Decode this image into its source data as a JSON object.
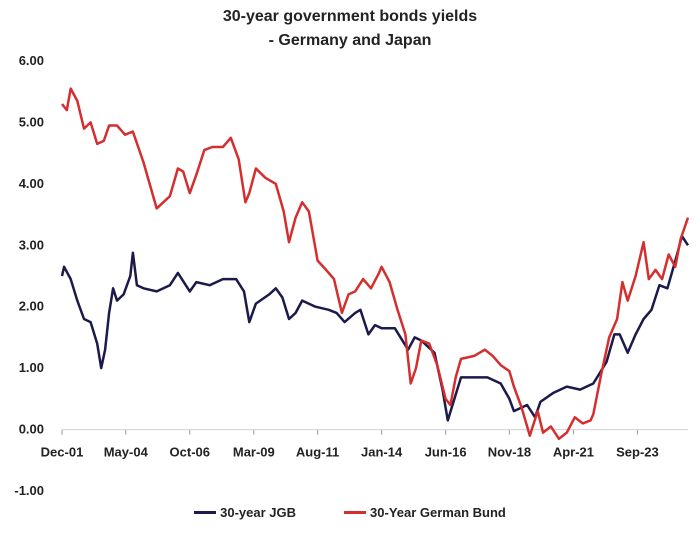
{
  "chart_data": {
    "type": "line",
    "title_line1": "30-year government bonds yields",
    "title_line2": "- Germany and Japan",
    "xlabel": "",
    "ylabel": "",
    "ylim": [
      -1.0,
      6.0
    ],
    "y_ticks": [
      "6.00",
      "5.00",
      "4.00",
      "3.00",
      "2.00",
      "1.00",
      "0.00",
      "-1.00"
    ],
    "x_range": [
      2001.92,
      2025.58
    ],
    "x_ticks": [
      {
        "label": "Dec-01",
        "x": 2001.92
      },
      {
        "label": "May-04",
        "x": 2004.33
      },
      {
        "label": "Oct-06",
        "x": 2006.75
      },
      {
        "label": "Mar-09",
        "x": 2009.17
      },
      {
        "label": "Aug-11",
        "x": 2011.58
      },
      {
        "label": "Jan-14",
        "x": 2014.0
      },
      {
        "label": "Jun-16",
        "x": 2016.42
      },
      {
        "label": "Nov-18",
        "x": 2018.83
      },
      {
        "label": "Apr-21",
        "x": 2021.25
      },
      {
        "label": "Sep-23",
        "x": 2023.67
      }
    ],
    "grid": false,
    "legend_position": "bottom",
    "series": [
      {
        "name": "30-year JGB",
        "color": "#1c1a4a",
        "points": [
          [
            2001.92,
            2.5
          ],
          [
            2002.0,
            2.65
          ],
          [
            2002.25,
            2.45
          ],
          [
            2002.5,
            2.1
          ],
          [
            2002.75,
            1.8
          ],
          [
            2003.0,
            1.75
          ],
          [
            2003.25,
            1.4
          ],
          [
            2003.4,
            1.0
          ],
          [
            2003.55,
            1.3
          ],
          [
            2003.7,
            1.9
          ],
          [
            2003.85,
            2.3
          ],
          [
            2004.0,
            2.1
          ],
          [
            2004.25,
            2.2
          ],
          [
            2004.5,
            2.5
          ],
          [
            2004.6,
            2.88
          ],
          [
            2004.75,
            2.35
          ],
          [
            2005.0,
            2.3
          ],
          [
            2005.5,
            2.25
          ],
          [
            2006.0,
            2.35
          ],
          [
            2006.3,
            2.55
          ],
          [
            2006.75,
            2.25
          ],
          [
            2007.0,
            2.4
          ],
          [
            2007.5,
            2.35
          ],
          [
            2008.0,
            2.45
          ],
          [
            2008.5,
            2.45
          ],
          [
            2008.8,
            2.25
          ],
          [
            2009.0,
            1.75
          ],
          [
            2009.25,
            2.05
          ],
          [
            2009.75,
            2.2
          ],
          [
            2010.0,
            2.3
          ],
          [
            2010.25,
            2.15
          ],
          [
            2010.5,
            1.8
          ],
          [
            2010.75,
            1.9
          ],
          [
            2011.0,
            2.1
          ],
          [
            2011.5,
            2.0
          ],
          [
            2012.0,
            1.95
          ],
          [
            2012.3,
            1.9
          ],
          [
            2012.6,
            1.75
          ],
          [
            2013.0,
            1.9
          ],
          [
            2013.2,
            1.95
          ],
          [
            2013.5,
            1.55
          ],
          [
            2013.75,
            1.7
          ],
          [
            2014.0,
            1.65
          ],
          [
            2014.5,
            1.65
          ],
          [
            2015.0,
            1.3
          ],
          [
            2015.25,
            1.5
          ],
          [
            2015.5,
            1.45
          ],
          [
            2016.0,
            1.25
          ],
          [
            2016.3,
            0.65
          ],
          [
            2016.5,
            0.15
          ],
          [
            2016.75,
            0.5
          ],
          [
            2017.0,
            0.85
          ],
          [
            2017.5,
            0.85
          ],
          [
            2018.0,
            0.85
          ],
          [
            2018.5,
            0.75
          ],
          [
            2018.83,
            0.5
          ],
          [
            2019.0,
            0.3
          ],
          [
            2019.5,
            0.4
          ],
          [
            2019.8,
            0.2
          ],
          [
            2020.0,
            0.45
          ],
          [
            2020.5,
            0.6
          ],
          [
            2021.0,
            0.7
          ],
          [
            2021.5,
            0.65
          ],
          [
            2022.0,
            0.75
          ],
          [
            2022.5,
            1.1
          ],
          [
            2022.8,
            1.55
          ],
          [
            2023.0,
            1.55
          ],
          [
            2023.3,
            1.25
          ],
          [
            2023.6,
            1.55
          ],
          [
            2023.9,
            1.8
          ],
          [
            2024.2,
            1.95
          ],
          [
            2024.5,
            2.35
          ],
          [
            2024.8,
            2.3
          ],
          [
            2025.0,
            2.6
          ],
          [
            2025.2,
            2.9
          ],
          [
            2025.35,
            3.15
          ],
          [
            2025.58,
            3.0
          ]
        ]
      },
      {
        "name": "30-Year German Bund",
        "color": "#d42e2e",
        "points": [
          [
            2001.92,
            5.3
          ],
          [
            2002.1,
            5.2
          ],
          [
            2002.25,
            5.55
          ],
          [
            2002.5,
            5.35
          ],
          [
            2002.75,
            4.9
          ],
          [
            2003.0,
            5.0
          ],
          [
            2003.25,
            4.65
          ],
          [
            2003.5,
            4.7
          ],
          [
            2003.7,
            4.95
          ],
          [
            2004.0,
            4.95
          ],
          [
            2004.3,
            4.8
          ],
          [
            2004.6,
            4.85
          ],
          [
            2005.0,
            4.35
          ],
          [
            2005.3,
            3.9
          ],
          [
            2005.5,
            3.6
          ],
          [
            2005.75,
            3.7
          ],
          [
            2006.0,
            3.8
          ],
          [
            2006.3,
            4.25
          ],
          [
            2006.5,
            4.2
          ],
          [
            2006.75,
            3.85
          ],
          [
            2007.0,
            4.15
          ],
          [
            2007.3,
            4.55
          ],
          [
            2007.6,
            4.6
          ],
          [
            2008.0,
            4.6
          ],
          [
            2008.3,
            4.75
          ],
          [
            2008.6,
            4.4
          ],
          [
            2008.85,
            3.7
          ],
          [
            2009.0,
            3.85
          ],
          [
            2009.25,
            4.25
          ],
          [
            2009.6,
            4.1
          ],
          [
            2010.0,
            4.0
          ],
          [
            2010.3,
            3.55
          ],
          [
            2010.5,
            3.05
          ],
          [
            2010.75,
            3.45
          ],
          [
            2011.0,
            3.7
          ],
          [
            2011.25,
            3.55
          ],
          [
            2011.58,
            2.75
          ],
          [
            2011.9,
            2.6
          ],
          [
            2012.2,
            2.45
          ],
          [
            2012.5,
            1.9
          ],
          [
            2012.75,
            2.2
          ],
          [
            2013.0,
            2.25
          ],
          [
            2013.3,
            2.45
          ],
          [
            2013.6,
            2.3
          ],
          [
            2013.9,
            2.55
          ],
          [
            2014.0,
            2.65
          ],
          [
            2014.3,
            2.4
          ],
          [
            2014.6,
            1.95
          ],
          [
            2014.9,
            1.55
          ],
          [
            2015.1,
            0.75
          ],
          [
            2015.3,
            1.0
          ],
          [
            2015.5,
            1.45
          ],
          [
            2015.8,
            1.4
          ],
          [
            2016.1,
            1.05
          ],
          [
            2016.42,
            0.5
          ],
          [
            2016.6,
            0.4
          ],
          [
            2016.8,
            0.85
          ],
          [
            2017.0,
            1.15
          ],
          [
            2017.5,
            1.2
          ],
          [
            2017.9,
            1.3
          ],
          [
            2018.2,
            1.2
          ],
          [
            2018.5,
            1.05
          ],
          [
            2018.83,
            0.95
          ],
          [
            2019.0,
            0.7
          ],
          [
            2019.3,
            0.35
          ],
          [
            2019.6,
            -0.1
          ],
          [
            2019.9,
            0.3
          ],
          [
            2020.1,
            -0.05
          ],
          [
            2020.4,
            0.05
          ],
          [
            2020.7,
            -0.15
          ],
          [
            2021.0,
            -0.05
          ],
          [
            2021.3,
            0.2
          ],
          [
            2021.6,
            0.1
          ],
          [
            2021.9,
            0.15
          ],
          [
            2022.0,
            0.25
          ],
          [
            2022.3,
            0.9
          ],
          [
            2022.6,
            1.5
          ],
          [
            2022.9,
            1.8
          ],
          [
            2023.1,
            2.4
          ],
          [
            2023.3,
            2.1
          ],
          [
            2023.6,
            2.5
          ],
          [
            2023.9,
            3.05
          ],
          [
            2024.1,
            2.45
          ],
          [
            2024.35,
            2.6
          ],
          [
            2024.6,
            2.45
          ],
          [
            2024.85,
            2.85
          ],
          [
            2025.1,
            2.65
          ],
          [
            2025.3,
            3.1
          ],
          [
            2025.58,
            3.45
          ]
        ]
      }
    ]
  }
}
